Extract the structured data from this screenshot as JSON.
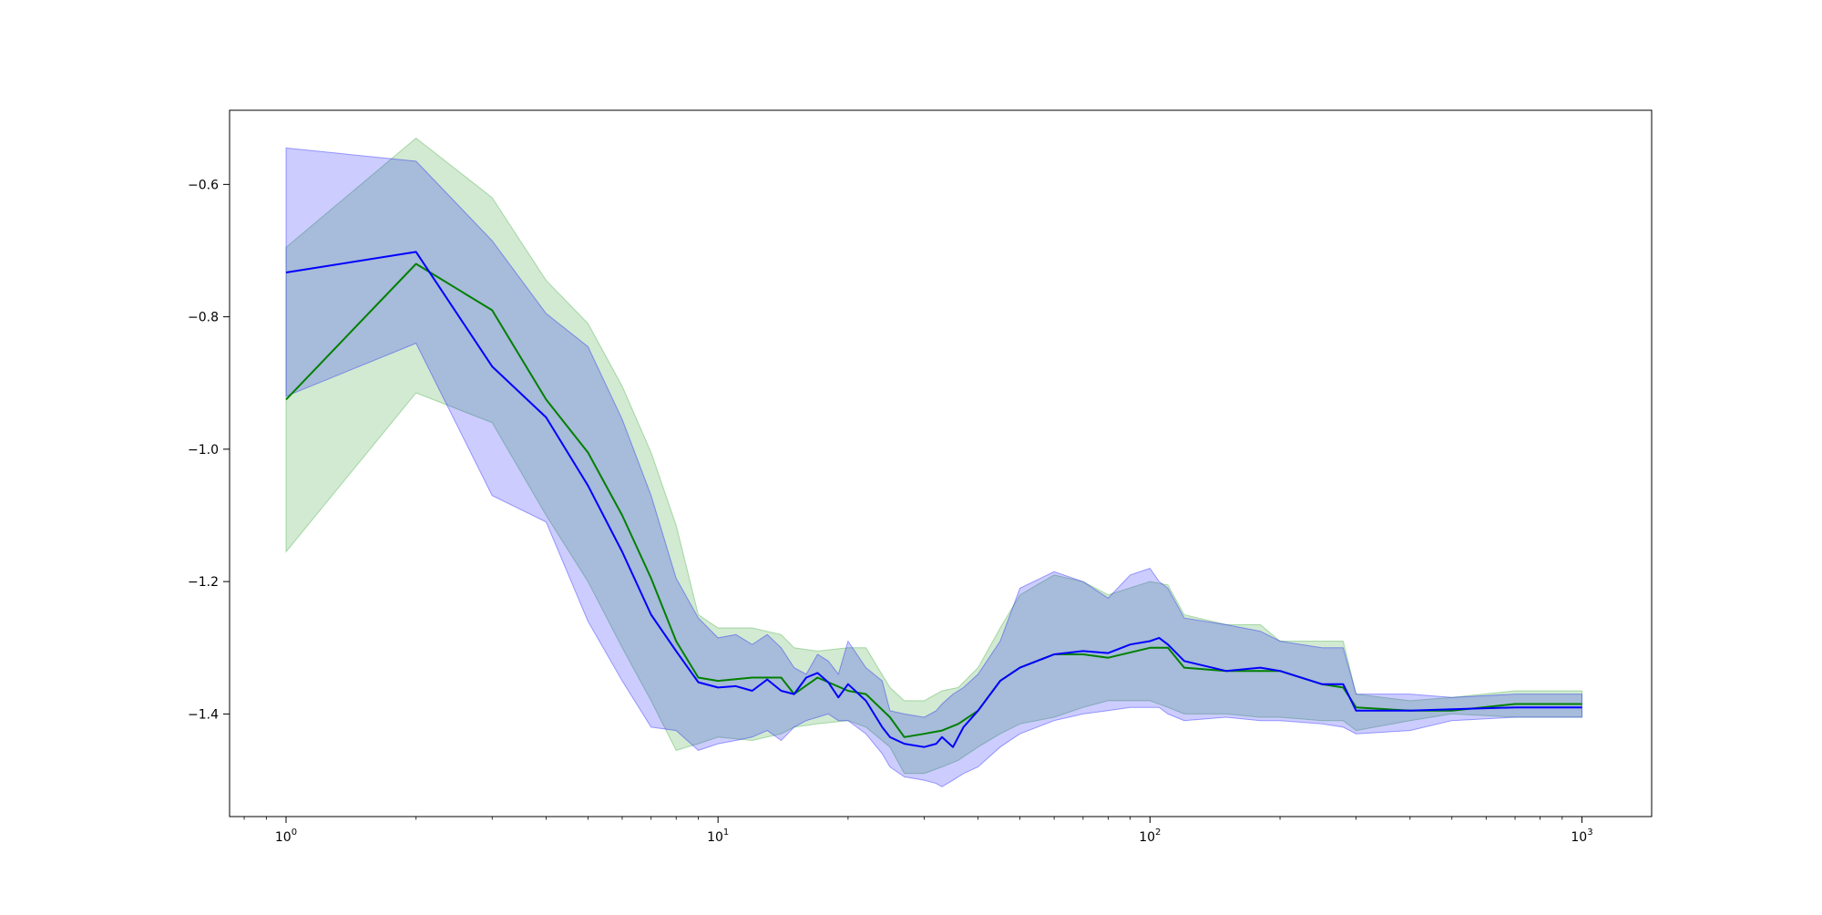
{
  "chart_data": {
    "type": "line",
    "title": "",
    "xlabel": "",
    "ylabel": "",
    "x_scale": "log",
    "xlim": [
      0.74,
      1450
    ],
    "ylim": [
      -1.555,
      -0.488
    ],
    "grid": false,
    "legend": "none",
    "x_ticks": [
      {
        "value": 1,
        "base": "10",
        "exp": "0"
      },
      {
        "value": 10,
        "base": "10",
        "exp": "1"
      },
      {
        "value": 100,
        "base": "10",
        "exp": "2"
      },
      {
        "value": 1000,
        "base": "10",
        "exp": "3"
      }
    ],
    "y_ticks": [
      {
        "value": -0.6,
        "label": "−0.6"
      },
      {
        "value": -0.8,
        "label": "−0.8"
      },
      {
        "value": -1.0,
        "label": "−1.0"
      },
      {
        "value": -1.2,
        "label": "−1.2"
      },
      {
        "value": -1.4,
        "label": "−1.4"
      }
    ],
    "series": [
      {
        "color": "#008000",
        "band_color": "#2ca02c",
        "band_opacity": 0.22,
        "x": [
          1,
          2,
          3,
          4,
          5,
          6,
          7,
          8,
          9,
          10,
          12,
          14,
          15,
          17,
          20,
          22,
          25,
          27,
          30,
          33,
          36,
          40,
          45,
          50,
          60,
          70,
          80,
          100,
          110,
          120,
          150,
          180,
          200,
          250,
          280,
          300,
          400,
          500,
          700,
          1000
        ],
        "y": [
          -0.925,
          -0.72,
          -0.79,
          -0.925,
          -1.005,
          -1.1,
          -1.195,
          -1.29,
          -1.345,
          -1.35,
          -1.345,
          -1.345,
          -1.37,
          -1.345,
          -1.365,
          -1.37,
          -1.405,
          -1.435,
          -1.43,
          -1.425,
          -1.415,
          -1.395,
          -1.35,
          -1.33,
          -1.31,
          -1.31,
          -1.315,
          -1.3,
          -1.3,
          -1.33,
          -1.335,
          -1.335,
          -1.335,
          -1.355,
          -1.36,
          -1.39,
          -1.395,
          -1.395,
          -1.385,
          -1.385
        ],
        "lower": [
          -1.155,
          -0.915,
          -0.96,
          -1.1,
          -1.2,
          -1.3,
          -1.38,
          -1.455,
          -1.445,
          -1.435,
          -1.44,
          -1.43,
          -1.42,
          -1.415,
          -1.41,
          -1.42,
          -1.45,
          -1.49,
          -1.49,
          -1.48,
          -1.47,
          -1.45,
          -1.43,
          -1.415,
          -1.405,
          -1.39,
          -1.38,
          -1.38,
          -1.39,
          -1.4,
          -1.4,
          -1.405,
          -1.405,
          -1.41,
          -1.41,
          -1.425,
          -1.41,
          -1.4,
          -1.405,
          -1.405
        ],
        "upper": [
          -0.695,
          -0.53,
          -0.62,
          -0.745,
          -0.81,
          -0.905,
          -1.005,
          -1.115,
          -1.25,
          -1.27,
          -1.27,
          -1.28,
          -1.3,
          -1.305,
          -1.3,
          -1.3,
          -1.36,
          -1.38,
          -1.38,
          -1.365,
          -1.36,
          -1.33,
          -1.27,
          -1.22,
          -1.19,
          -1.2,
          -1.22,
          -1.2,
          -1.205,
          -1.25,
          -1.265,
          -1.265,
          -1.29,
          -1.29,
          -1.29,
          -1.37,
          -1.38,
          -1.375,
          -1.365,
          -1.365
        ]
      },
      {
        "color": "#0000ff",
        "band_color": "#0000ff",
        "band_opacity": 0.2,
        "x": [
          1,
          2,
          3,
          4,
          5,
          6,
          7,
          8,
          9,
          10,
          11,
          12,
          13,
          14,
          15,
          16,
          17,
          18,
          19,
          20,
          22,
          24,
          25,
          27,
          30,
          32,
          33,
          35,
          37,
          40,
          45,
          50,
          60,
          70,
          80,
          90,
          100,
          105,
          110,
          120,
          150,
          180,
          200,
          250,
          280,
          300,
          400,
          500,
          700,
          1000
        ],
        "y": [
          -0.733,
          -0.702,
          -0.875,
          -0.952,
          -1.055,
          -1.155,
          -1.25,
          -1.305,
          -1.352,
          -1.36,
          -1.358,
          -1.365,
          -1.348,
          -1.365,
          -1.37,
          -1.345,
          -1.338,
          -1.352,
          -1.375,
          -1.355,
          -1.38,
          -1.42,
          -1.435,
          -1.445,
          -1.45,
          -1.445,
          -1.435,
          -1.45,
          -1.42,
          -1.395,
          -1.35,
          -1.33,
          -1.31,
          -1.305,
          -1.308,
          -1.295,
          -1.29,
          -1.285,
          -1.295,
          -1.32,
          -1.335,
          -1.33,
          -1.335,
          -1.355,
          -1.355,
          -1.395,
          -1.395,
          -1.393,
          -1.39,
          -1.39
        ],
        "lower": [
          -0.92,
          -0.84,
          -1.07,
          -1.11,
          -1.26,
          -1.35,
          -1.42,
          -1.425,
          -1.455,
          -1.445,
          -1.44,
          -1.435,
          -1.425,
          -1.44,
          -1.42,
          -1.41,
          -1.405,
          -1.4,
          -1.41,
          -1.41,
          -1.43,
          -1.46,
          -1.48,
          -1.495,
          -1.5,
          -1.505,
          -1.51,
          -1.5,
          -1.49,
          -1.48,
          -1.45,
          -1.43,
          -1.41,
          -1.4,
          -1.395,
          -1.39,
          -1.39,
          -1.39,
          -1.4,
          -1.41,
          -1.405,
          -1.41,
          -1.41,
          -1.415,
          -1.42,
          -1.43,
          -1.425,
          -1.41,
          -1.405,
          -1.405
        ],
        "upper": [
          -0.545,
          -0.565,
          -0.685,
          -0.795,
          -0.845,
          -0.955,
          -1.07,
          -1.195,
          -1.255,
          -1.285,
          -1.28,
          -1.295,
          -1.28,
          -1.3,
          -1.33,
          -1.34,
          -1.31,
          -1.32,
          -1.34,
          -1.29,
          -1.33,
          -1.35,
          -1.395,
          -1.4,
          -1.405,
          -1.395,
          -1.385,
          -1.37,
          -1.36,
          -1.34,
          -1.29,
          -1.21,
          -1.185,
          -1.2,
          -1.225,
          -1.19,
          -1.18,
          -1.2,
          -1.21,
          -1.255,
          -1.265,
          -1.275,
          -1.29,
          -1.3,
          -1.3,
          -1.37,
          -1.37,
          -1.375,
          -1.37,
          -1.37
        ]
      }
    ]
  }
}
